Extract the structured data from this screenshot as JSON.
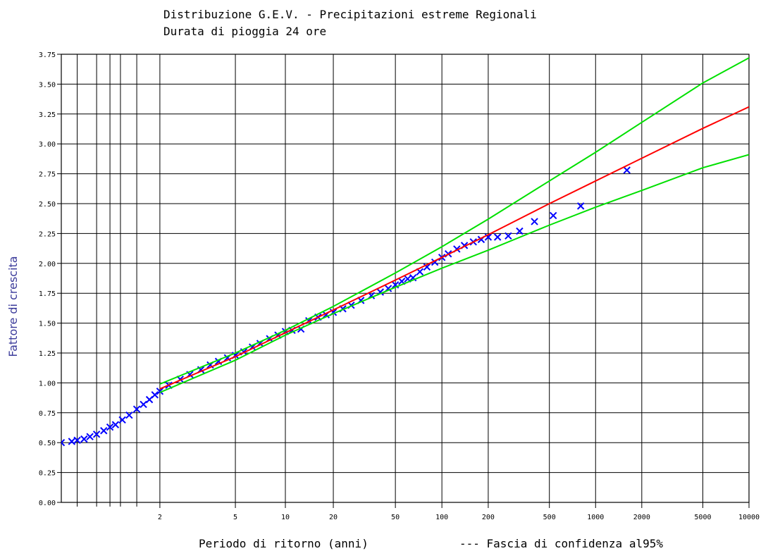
{
  "chart_data": {
    "type": "scatter",
    "title_line1": "Distribuzione G.E.V.  -  Precipitazioni estreme Regionali",
    "title_line2": "Durata di pioggia 24 ore",
    "xlabel": "Periodo di ritorno (anni)",
    "confidence_label": "--- Fascia di confidenza al95%",
    "ylabel": "Fattore di crescita",
    "x_scale": "gumbel-reduced-variate",
    "xlim": [
      1.05,
      10000
    ],
    "ylim": [
      0,
      3.75
    ],
    "grid": true,
    "y_ticks": [
      {
        "value": 0,
        "label": "0.00"
      },
      {
        "value": 0.25,
        "label": "0.25"
      },
      {
        "value": 0.5,
        "label": "0.50"
      },
      {
        "value": 0.75,
        "label": "0.75"
      },
      {
        "value": 1.0,
        "label": "1.00"
      },
      {
        "value": 1.25,
        "label": "1.25"
      },
      {
        "value": 1.5,
        "label": "1.50"
      },
      {
        "value": 1.75,
        "label": "1.75"
      },
      {
        "value": 2.0,
        "label": "2.00"
      },
      {
        "value": 2.25,
        "label": "2.25"
      },
      {
        "value": 2.5,
        "label": "2.50"
      },
      {
        "value": 2.75,
        "label": "2.75"
      },
      {
        "value": 3.0,
        "label": "3.00"
      },
      {
        "value": 3.25,
        "label": "3.25"
      },
      {
        "value": 3.5,
        "label": "3.50"
      },
      {
        "value": 3.75,
        "label": "3.75"
      }
    ],
    "x_ticks": [
      {
        "value": 2,
        "label": "2"
      },
      {
        "value": 5,
        "label": "5"
      },
      {
        "value": 10,
        "label": "10"
      },
      {
        "value": 20,
        "label": "20"
      },
      {
        "value": 50,
        "label": "50"
      },
      {
        "value": 100,
        "label": "100"
      },
      {
        "value": 200,
        "label": "200"
      },
      {
        "value": 500,
        "label": "500"
      },
      {
        "value": 1000,
        "label": "1000"
      },
      {
        "value": 2000,
        "label": "2000"
      },
      {
        "value": 5000,
        "label": "5000"
      },
      {
        "value": 10000,
        "label": "10000"
      }
    ],
    "x_minor_gridlines": [
      1.1,
      1.2,
      1.3,
      1.4,
      1.6
    ],
    "series": [
      {
        "role": "fitted-curve",
        "color": "#ff0000",
        "x": [
          2,
          5,
          10,
          20,
          50,
          100,
          200,
          500,
          1000,
          2000,
          5000,
          10000
        ],
        "y": [
          0.95,
          1.22,
          1.42,
          1.61,
          1.86,
          2.05,
          2.24,
          2.5,
          2.69,
          2.88,
          3.13,
          3.31
        ]
      },
      {
        "role": "confidence-upper",
        "color": "#00e000",
        "x": [
          2,
          5,
          10,
          20,
          50,
          100,
          200,
          500,
          1000,
          2000,
          5000,
          10000
        ],
        "y": [
          0.99,
          1.25,
          1.44,
          1.64,
          1.92,
          2.14,
          2.37,
          2.69,
          2.93,
          3.18,
          3.51,
          3.72
        ]
      },
      {
        "role": "confidence-lower",
        "color": "#00e000",
        "x": [
          2,
          5,
          10,
          20,
          50,
          100,
          200,
          500,
          1000,
          2000,
          5000,
          10000
        ],
        "y": [
          0.92,
          1.19,
          1.4,
          1.58,
          1.8,
          1.96,
          2.11,
          2.32,
          2.47,
          2.61,
          2.8,
          2.91
        ]
      },
      {
        "role": "observed",
        "marker": "x",
        "color": "#0000ff",
        "x": [
          1.05,
          1.08,
          1.1,
          1.13,
          1.16,
          1.2,
          1.25,
          1.3,
          1.35,
          1.42,
          1.5,
          1.6,
          1.7,
          1.8,
          1.9,
          2.0,
          2.2,
          2.5,
          2.8,
          3.2,
          3.6,
          4.0,
          4.5,
          5.0,
          5.6,
          6.3,
          7.0,
          8.0,
          9.0,
          10,
          11,
          12.5,
          14,
          16,
          18,
          20,
          23,
          26,
          30,
          35,
          40,
          45,
          50,
          55,
          60,
          65,
          72,
          80,
          90,
          100,
          110,
          125,
          140,
          160,
          180,
          200,
          230,
          270,
          320,
          400,
          530,
          800,
          1600
        ],
        "y": [
          0.5,
          0.51,
          0.52,
          0.53,
          0.55,
          0.57,
          0.6,
          0.63,
          0.65,
          0.69,
          0.73,
          0.78,
          0.82,
          0.86,
          0.9,
          0.93,
          0.98,
          1.03,
          1.07,
          1.11,
          1.15,
          1.18,
          1.21,
          1.23,
          1.26,
          1.3,
          1.33,
          1.37,
          1.4,
          1.43,
          1.44,
          1.45,
          1.52,
          1.55,
          1.57,
          1.59,
          1.62,
          1.65,
          1.69,
          1.73,
          1.76,
          1.79,
          1.82,
          1.85,
          1.87,
          1.88,
          1.93,
          1.97,
          2.01,
          2.05,
          2.08,
          2.12,
          2.15,
          2.18,
          2.2,
          2.22,
          2.22,
          2.23,
          2.27,
          2.35,
          2.4,
          2.48,
          2.78
        ]
      }
    ]
  }
}
